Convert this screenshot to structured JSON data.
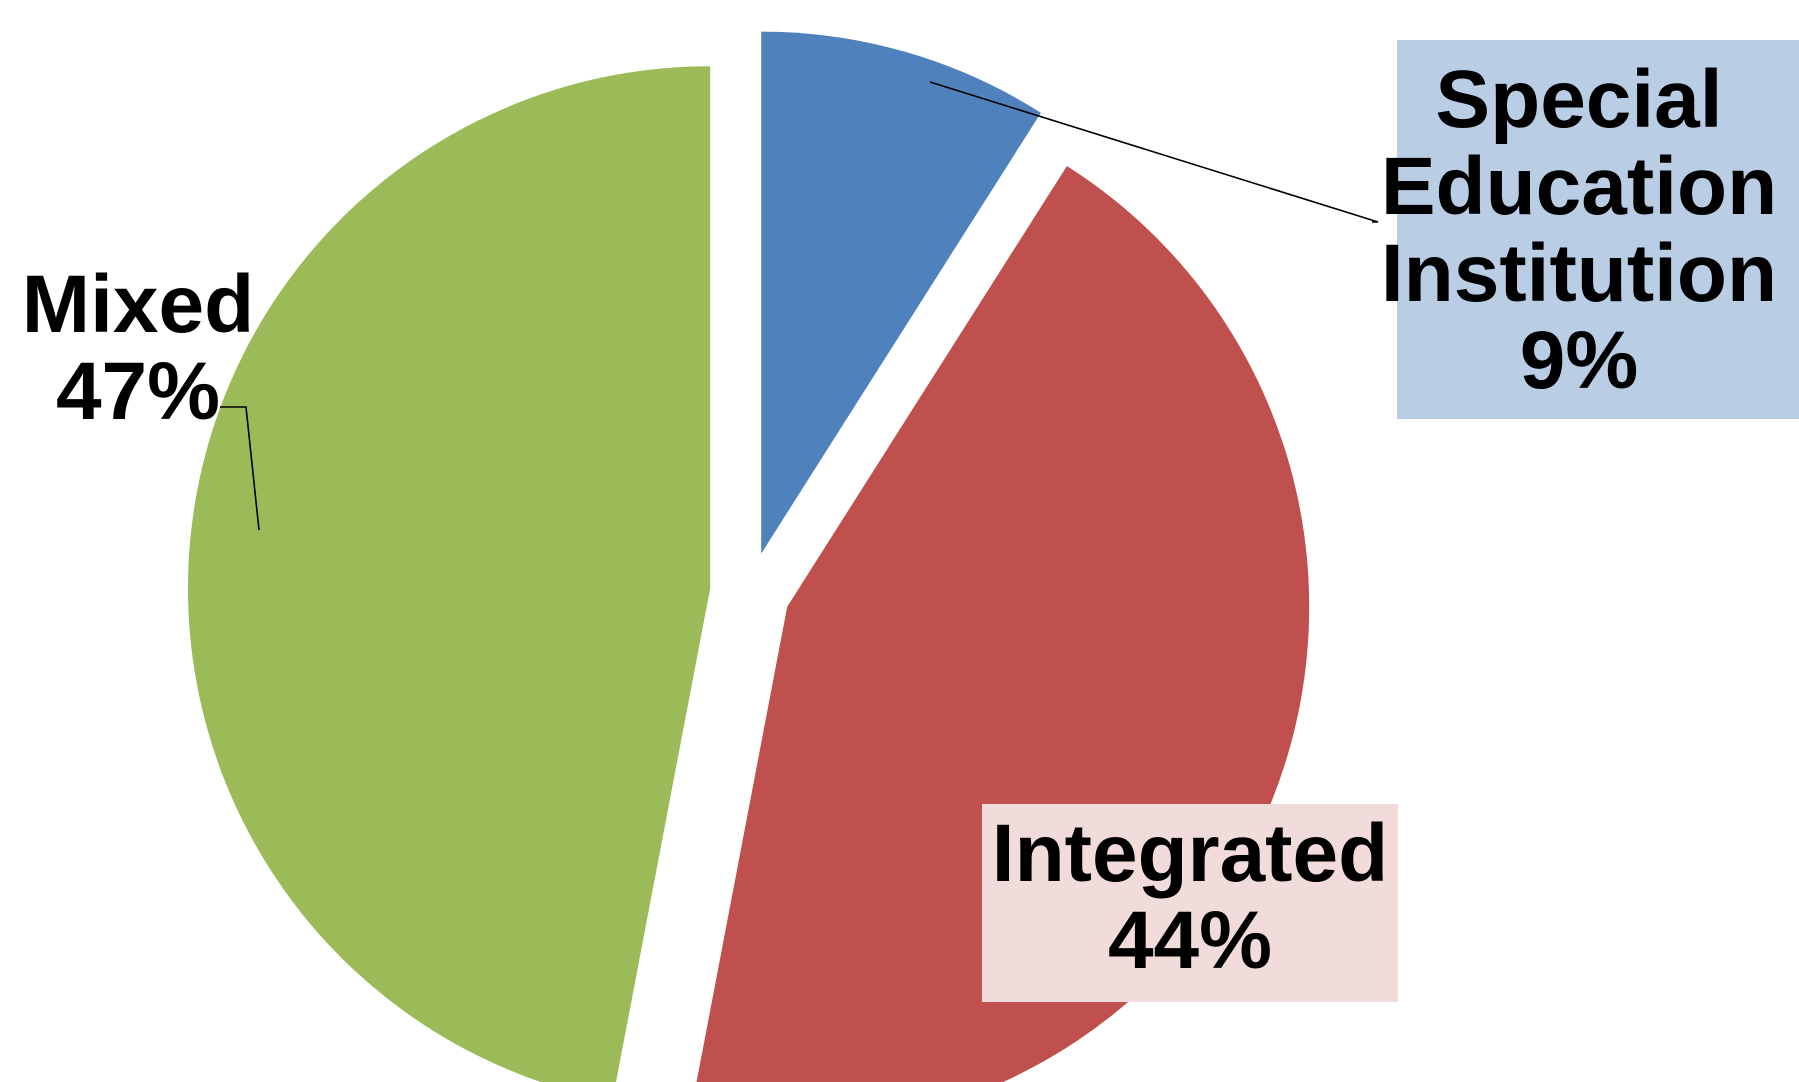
{
  "chart_data": {
    "type": "pie",
    "title": "",
    "slices": [
      {
        "category": "Special Education Institution",
        "value": 9,
        "label_lines": [
          "Special",
          "Education",
          "Institution",
          "9%"
        ],
        "color": "#4F81BD",
        "label_box_color": "#B9CDE5",
        "exploded": true
      },
      {
        "category": "Integrated",
        "value": 44,
        "label_lines": [
          "Integrated",
          "44%"
        ],
        "color": "#C0504D",
        "label_box_color": "#F2DCDB",
        "exploded": true
      },
      {
        "category": "Mixed",
        "value": 47,
        "label_lines": [
          "Mixed",
          "47%"
        ],
        "color": "#9BBB59",
        "label_box_color": null,
        "exploded": true
      }
    ],
    "start_angle_deg": 0,
    "direction": "clockwise",
    "legend": "none",
    "data_labels": "category and percentage",
    "leader_lines": true
  }
}
